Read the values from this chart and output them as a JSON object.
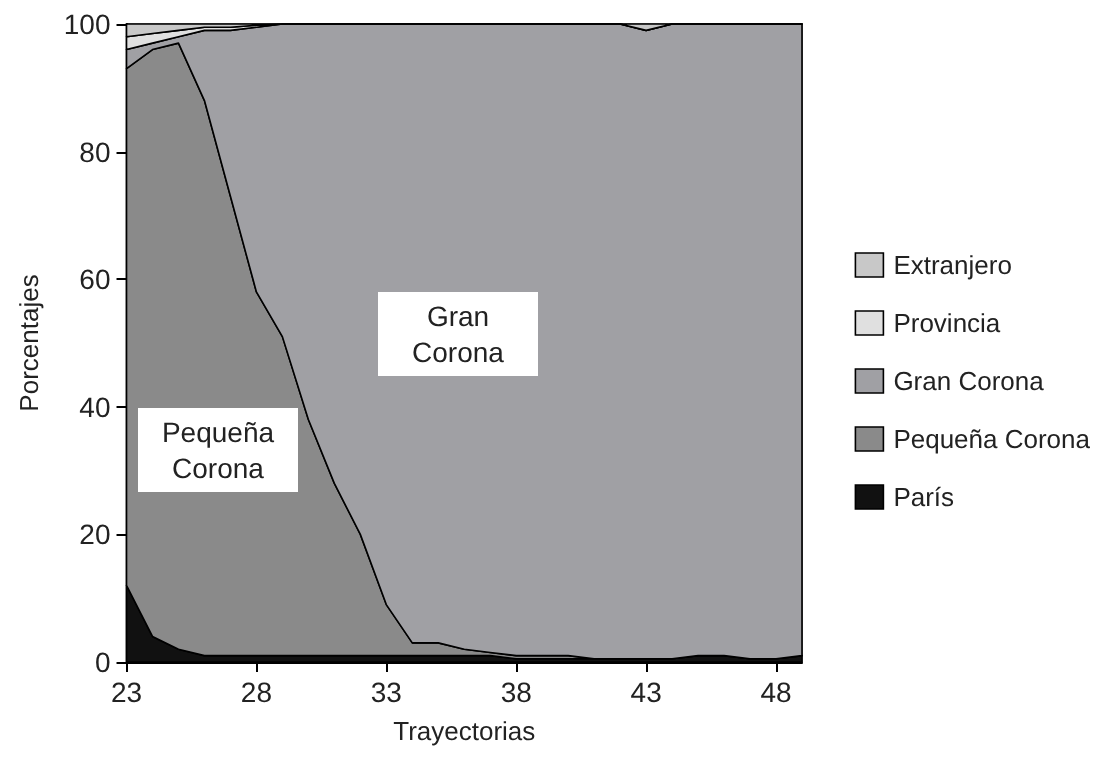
{
  "chart_data": {
    "type": "area",
    "stacked": true,
    "xlabel": "Trayectorias",
    "ylabel": "Porcentajes",
    "x": [
      23,
      24,
      25,
      26,
      27,
      28,
      29,
      30,
      31,
      32,
      33,
      34,
      35,
      36,
      37,
      38,
      39,
      40,
      41,
      42,
      43,
      44,
      45,
      46,
      47,
      48,
      49
    ],
    "xlim": [
      23,
      49
    ],
    "xticks": [
      23,
      28,
      33,
      38,
      43,
      48
    ],
    "ylim": [
      0,
      100
    ],
    "yticks": [
      0,
      20,
      40,
      60,
      80,
      100
    ],
    "legend": "right",
    "series": [
      {
        "name": "París",
        "color": "#111111",
        "values": [
          12,
          4,
          2,
          1,
          1,
          1,
          1,
          1,
          1,
          1,
          1,
          1,
          1,
          1,
          1,
          0.5,
          0.5,
          0.5,
          0.5,
          0.5,
          0.5,
          0.5,
          1,
          1,
          0.5,
          0.5,
          1
        ]
      },
      {
        "name": "Pequeña Corona",
        "color": "#8a8a8a",
        "values": [
          81,
          92,
          95,
          87,
          72,
          57,
          50,
          37,
          27,
          19,
          8,
          2,
          2,
          1,
          0.5,
          0.5,
          0.5,
          0.5,
          0,
          0,
          0,
          0,
          0,
          0,
          0,
          0,
          0
        ]
      },
      {
        "name": "Gran Corona",
        "color": "#a0a0a4",
        "values": [
          3,
          1,
          1,
          11,
          26,
          41.5,
          49,
          62,
          72,
          80,
          91,
          97,
          97,
          98,
          98.5,
          99,
          99,
          99,
          99.5,
          99.5,
          98.5,
          99.5,
          99,
          99,
          99.5,
          99.5,
          99
        ]
      },
      {
        "name": "Provincia",
        "color": "#e0e0e0",
        "values": [
          2,
          1.5,
          1,
          0.5,
          0.5,
          0.3,
          0,
          0,
          0,
          0,
          0,
          0,
          0,
          0,
          0,
          0,
          0,
          0,
          0,
          0,
          0,
          0,
          0,
          0,
          0,
          0,
          0
        ]
      },
      {
        "name": "Extranjero",
        "color": "#c8c8c8",
        "values": [
          2,
          1.5,
          1,
          0.5,
          0.5,
          0.2,
          0,
          0,
          0,
          0,
          0,
          0,
          0,
          0,
          0,
          0,
          0,
          0,
          0,
          0,
          1,
          0,
          0,
          0,
          0,
          0,
          0
        ]
      }
    ],
    "annotations": [
      "Gran Corona",
      "Pequeña Corona"
    ]
  }
}
